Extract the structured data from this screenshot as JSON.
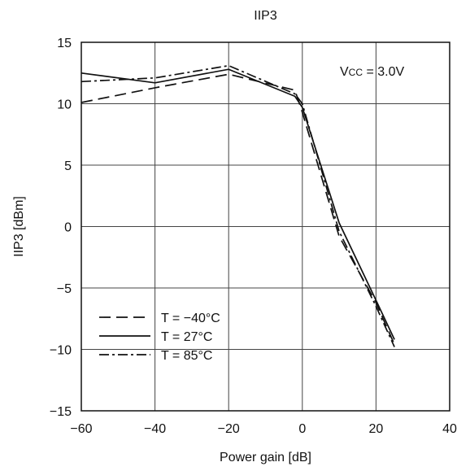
{
  "chart_data": {
    "type": "line",
    "title": "IIP3",
    "xlabel": "Power gain [dB]",
    "ylabel": "IIP3 [dBm]",
    "xlim": [
      -60,
      40
    ],
    "ylim": [
      -15,
      15
    ],
    "xticks": [
      -60,
      -40,
      -20,
      0,
      20,
      40
    ],
    "yticks": [
      -15,
      -10,
      -5,
      0,
      5,
      10,
      15
    ],
    "xtick_labels": [
      "−60",
      "−40",
      "−20",
      "0",
      "20",
      "40"
    ],
    "ytick_labels": [
      "−15",
      "−10",
      "−5",
      "0",
      "5",
      "10",
      "15"
    ],
    "grid": true,
    "legend_position": "bottom-left",
    "annotation": {
      "v": "V",
      "sub": "CC",
      "rest": " = 3.0V"
    },
    "series": [
      {
        "name": "T = −40°C",
        "style": "dashed",
        "x": [
          -60,
          -40,
          -20,
          -2,
          0,
          10,
          20,
          25
        ],
        "y": [
          10.1,
          11.3,
          12.4,
          11.1,
          9.3,
          -0.8,
          -6.2,
          -9.6
        ]
      },
      {
        "name": "T = 27°C",
        "style": "solid",
        "x": [
          -60,
          -40,
          -20,
          -2,
          0,
          10,
          20,
          25
        ],
        "y": [
          12.5,
          11.7,
          12.8,
          10.6,
          9.7,
          0.3,
          -6.0,
          -9.2
        ]
      },
      {
        "name": "T = 85°C",
        "style": "dashdot",
        "x": [
          -60,
          -40,
          -20,
          -2,
          0,
          10,
          20,
          25
        ],
        "y": [
          11.8,
          12.1,
          13.1,
          10.8,
          10.0,
          -0.4,
          -6.5,
          -9.8
        ]
      }
    ]
  }
}
